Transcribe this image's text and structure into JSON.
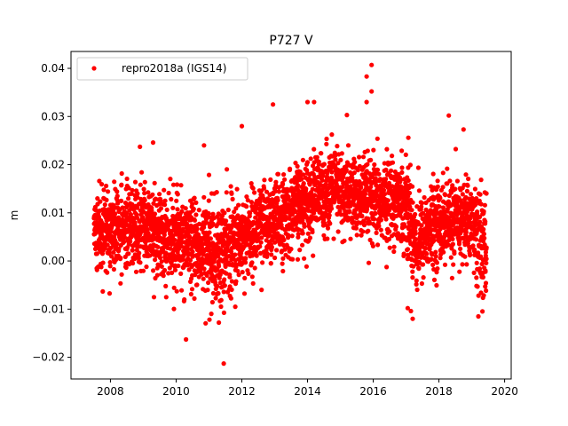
{
  "chart_data": {
    "type": "scatter",
    "title": "P727 V",
    "xlabel": "",
    "ylabel": "m",
    "xlim": [
      2006.8,
      2020.2
    ],
    "ylim": [
      -0.0245,
      0.0435
    ],
    "xticks": [
      2008,
      2010,
      2012,
      2014,
      2016,
      2018,
      2020
    ],
    "xtick_labels": [
      "2008",
      "2010",
      "2012",
      "2014",
      "2016",
      "2018",
      "2020"
    ],
    "yticks": [
      -0.02,
      -0.01,
      0.0,
      0.01,
      0.02,
      0.03,
      0.04
    ],
    "ytick_labels": [
      "−0.02",
      "−0.01",
      "0.00",
      "0.01",
      "0.02",
      "0.03",
      "0.04"
    ],
    "grid": false,
    "legend_position": "top-left",
    "series": [
      {
        "name": "repro2018a (IGS14)",
        "color": "#ff0000",
        "marker": "circle",
        "trend": {
          "x": [
            2007.5,
            2008.0,
            2009.0,
            2010.0,
            2010.9,
            2011.3,
            2011.8,
            2012.5,
            2013.3,
            2014.0,
            2014.8,
            2015.4,
            2016.0,
            2016.6,
            2017.0,
            2017.3,
            2018.0,
            2019.0,
            2019.3,
            2019.45
          ],
          "y": [
            0.006,
            0.0065,
            0.007,
            0.0045,
            0.002,
            0.001,
            0.004,
            0.007,
            0.009,
            0.013,
            0.015,
            0.013,
            0.012,
            0.013,
            0.012,
            0.004,
            0.008,
            0.0085,
            0.003,
            0.001
          ]
        },
        "spread_sd": 0.0042,
        "outliers": [
          {
            "x": 2011.45,
            "y": -0.0213
          },
          {
            "x": 2010.3,
            "y": -0.0163
          },
          {
            "x": 2015.95,
            "y": 0.0407
          },
          {
            "x": 2015.8,
            "y": 0.0383
          },
          {
            "x": 2015.95,
            "y": 0.0352
          },
          {
            "x": 2015.8,
            "y": 0.033
          },
          {
            "x": 2014.0,
            "y": 0.033
          },
          {
            "x": 2014.2,
            "y": 0.033
          },
          {
            "x": 2012.95,
            "y": 0.0325
          },
          {
            "x": 2015.2,
            "y": 0.0303
          },
          {
            "x": 2018.3,
            "y": 0.0302
          },
          {
            "x": 2011.3,
            "y": -0.0128
          },
          {
            "x": 2017.2,
            "y": -0.012
          },
          {
            "x": 2019.2,
            "y": -0.0115
          },
          {
            "x": 2009.3,
            "y": 0.0246
          },
          {
            "x": 2008.9,
            "y": 0.0237
          },
          {
            "x": 2010.85,
            "y": 0.024
          },
          {
            "x": 2012.0,
            "y": 0.028
          },
          {
            "x": 2018.75,
            "y": 0.0273
          },
          {
            "x": 2009.7,
            "y": -0.0075
          },
          {
            "x": 2010.25,
            "y": -0.008
          },
          {
            "x": 2017.05,
            "y": -0.0098
          },
          {
            "x": 2011.8,
            "y": -0.0095
          },
          {
            "x": 2012.6,
            "y": -0.006
          }
        ]
      }
    ]
  }
}
